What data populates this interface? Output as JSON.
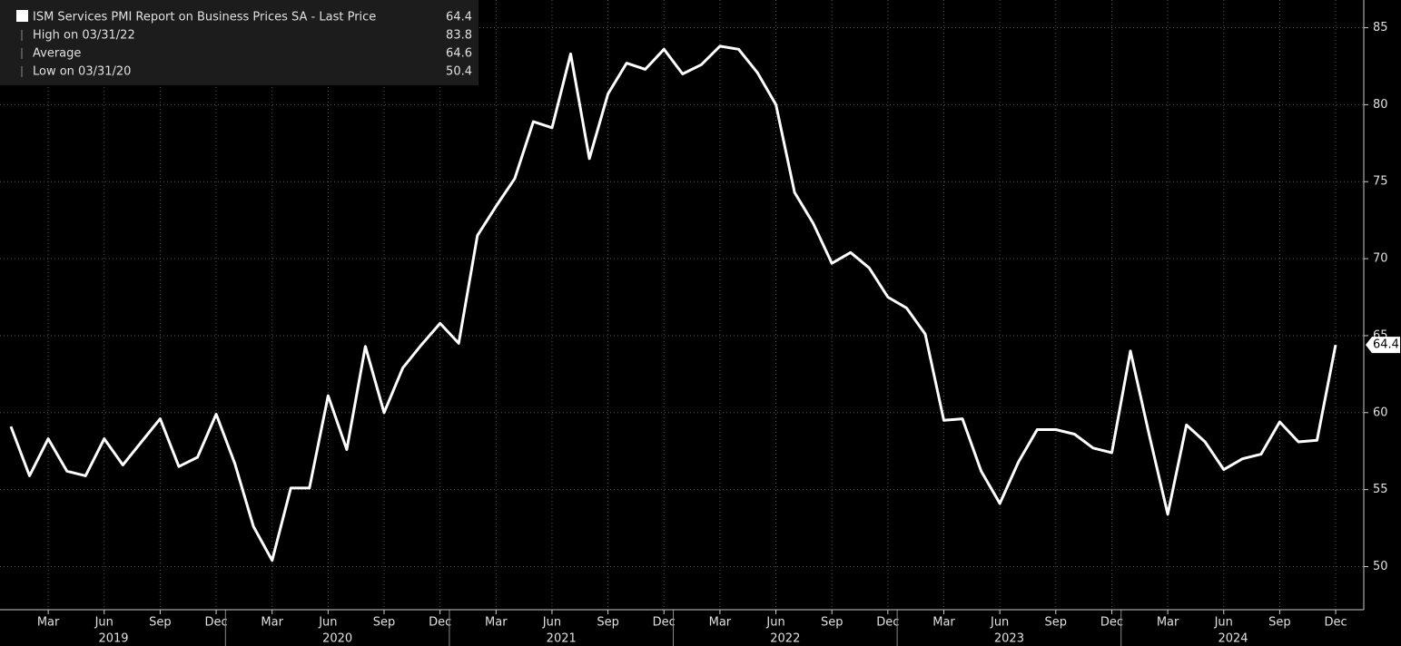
{
  "chart_data": {
    "type": "line",
    "legend": {
      "title": "ISM Services PMI Report on Business Prices SA - Last Price",
      "last": "64.4",
      "rows": [
        {
          "label": "High on 03/31/22",
          "value": "83.8"
        },
        {
          "label": "Average",
          "value": "64.6"
        },
        {
          "label": "Low on 03/31/20",
          "value": "50.4"
        }
      ]
    },
    "x": [
      "2019-01",
      "2019-02",
      "2019-03",
      "2019-04",
      "2019-05",
      "2019-06",
      "2019-07",
      "2019-08",
      "2019-09",
      "2019-10",
      "2019-11",
      "2019-12",
      "2020-01",
      "2020-02",
      "2020-03",
      "2020-04",
      "2020-05",
      "2020-06",
      "2020-07",
      "2020-08",
      "2020-09",
      "2020-10",
      "2020-11",
      "2020-12",
      "2021-01",
      "2021-02",
      "2021-03",
      "2021-04",
      "2021-05",
      "2021-06",
      "2021-07",
      "2021-08",
      "2021-09",
      "2021-10",
      "2021-11",
      "2021-12",
      "2022-01",
      "2022-02",
      "2022-03",
      "2022-04",
      "2022-05",
      "2022-06",
      "2022-07",
      "2022-08",
      "2022-09",
      "2022-10",
      "2022-11",
      "2022-12",
      "2023-01",
      "2023-02",
      "2023-03",
      "2023-04",
      "2023-05",
      "2023-06",
      "2023-07",
      "2023-08",
      "2023-09",
      "2023-10",
      "2023-11",
      "2023-12",
      "2024-01",
      "2024-02",
      "2024-03",
      "2024-04",
      "2024-05",
      "2024-06",
      "2024-07",
      "2024-08",
      "2024-09",
      "2024-10",
      "2024-11",
      "2024-12"
    ],
    "series": [
      {
        "name": "ISM Services PMI Report on Business Prices SA",
        "color": "#ffffff",
        "values": [
          59.1,
          55.9,
          58.3,
          56.2,
          55.9,
          58.3,
          56.6,
          58.1,
          59.6,
          56.5,
          57.1,
          59.9,
          56.7,
          52.6,
          50.4,
          55.1,
          55.1,
          61.1,
          57.6,
          64.3,
          60.0,
          62.9,
          64.4,
          65.8,
          64.5,
          71.5,
          73.4,
          75.2,
          78.9,
          78.5,
          83.3,
          76.5,
          80.7,
          82.7,
          82.3,
          83.6,
          82.0,
          82.6,
          83.8,
          83.6,
          82.1,
          80.0,
          74.3,
          72.3,
          69.7,
          70.4,
          69.4,
          67.5,
          66.8,
          65.1,
          59.5,
          59.6,
          56.2,
          54.1,
          56.8,
          58.9,
          58.9,
          58.6,
          57.7,
          57.4,
          64.0,
          58.6,
          53.4,
          59.2,
          58.1,
          56.3,
          57.0,
          57.3,
          59.4,
          58.1,
          58.2,
          64.4
        ]
      }
    ],
    "ylim": [
      47.2,
      86.8
    ],
    "yticks": [
      50,
      55,
      60,
      65,
      70,
      75,
      80,
      85
    ],
    "xticks": [
      {
        "value": "2019-03",
        "label": "Mar"
      },
      {
        "value": "2019-06",
        "label": "Jun"
      },
      {
        "value": "2019-09",
        "label": "Sep"
      },
      {
        "value": "2019-12",
        "label": "Dec"
      },
      {
        "value": "2020-03",
        "label": "Mar"
      },
      {
        "value": "2020-06",
        "label": "Jun"
      },
      {
        "value": "2020-09",
        "label": "Sep"
      },
      {
        "value": "2020-12",
        "label": "Dec"
      },
      {
        "value": "2021-03",
        "label": "Mar"
      },
      {
        "value": "2021-06",
        "label": "Jun"
      },
      {
        "value": "2021-09",
        "label": "Sep"
      },
      {
        "value": "2021-12",
        "label": "Dec"
      },
      {
        "value": "2022-03",
        "label": "Mar"
      },
      {
        "value": "2022-06",
        "label": "Jun"
      },
      {
        "value": "2022-09",
        "label": "Sep"
      },
      {
        "value": "2022-12",
        "label": "Dec"
      },
      {
        "value": "2023-03",
        "label": "Mar"
      },
      {
        "value": "2023-06",
        "label": "Jun"
      },
      {
        "value": "2023-09",
        "label": "Sep"
      },
      {
        "value": "2023-12",
        "label": "Dec"
      },
      {
        "value": "2024-03",
        "label": "Mar"
      },
      {
        "value": "2024-06",
        "label": "Jun"
      },
      {
        "value": "2024-09",
        "label": "Sep"
      },
      {
        "value": "2024-12",
        "label": "Dec"
      }
    ],
    "years": [
      "2019",
      "2020",
      "2021",
      "2022",
      "2023",
      "2024"
    ],
    "grid": true
  }
}
